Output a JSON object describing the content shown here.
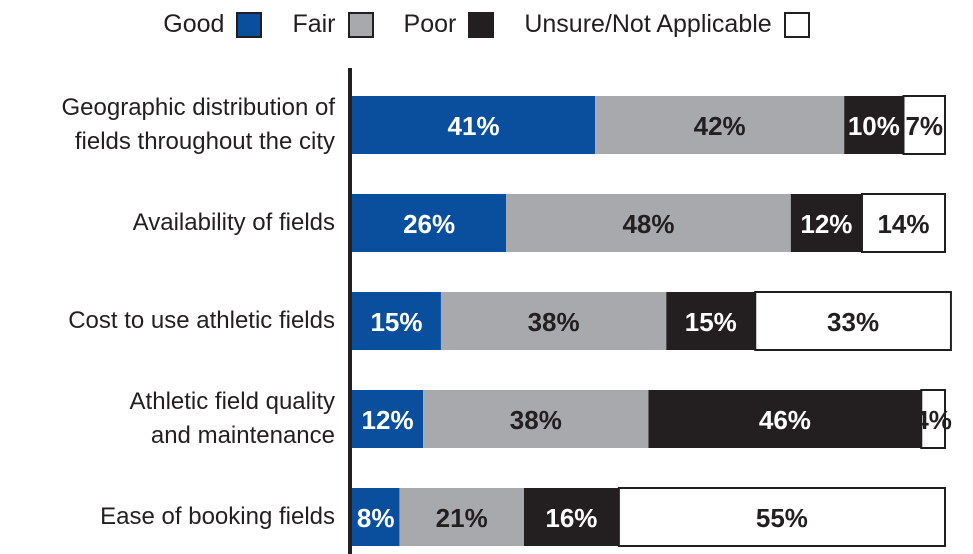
{
  "chart_data": {
    "type": "stacked-bar-horizontal",
    "categories": [
      "Geographic distribution of\nfields throughout the city",
      "Availability of fields",
      "Cost to use athletic fields",
      "Athletic field quality\nand maintenance",
      "Ease of booking fields"
    ],
    "series": [
      {
        "name": "Good",
        "color": "#0a4f9e",
        "label_color": "#ffffff",
        "values": [
          41,
          26,
          15,
          12,
          8
        ],
        "value_labels": [
          "41%",
          "26%",
          "15%",
          "12%",
          "8%"
        ]
      },
      {
        "name": "Fair",
        "color": "#a7a9ac",
        "label_color": "#231f20",
        "values": [
          42,
          48,
          38,
          38,
          21
        ],
        "value_labels": [
          "42%",
          "48%",
          "38%",
          "38%",
          "21%"
        ]
      },
      {
        "name": "Poor",
        "color": "#231f20",
        "label_color": "#ffffff",
        "values": [
          10,
          12,
          15,
          46,
          16
        ],
        "value_labels": [
          "10%",
          "12%",
          "15%",
          "46%",
          "16%"
        ]
      },
      {
        "name": "Unsure/Not Applicable",
        "color": "#ffffff",
        "label_color": "#231f20",
        "values": [
          7,
          14,
          33,
          4,
          55
        ],
        "value_labels": [
          "7%",
          "14%",
          "33%",
          "4%",
          "55%"
        ]
      }
    ],
    "xlim": [
      0,
      100
    ],
    "legend": "top"
  }
}
